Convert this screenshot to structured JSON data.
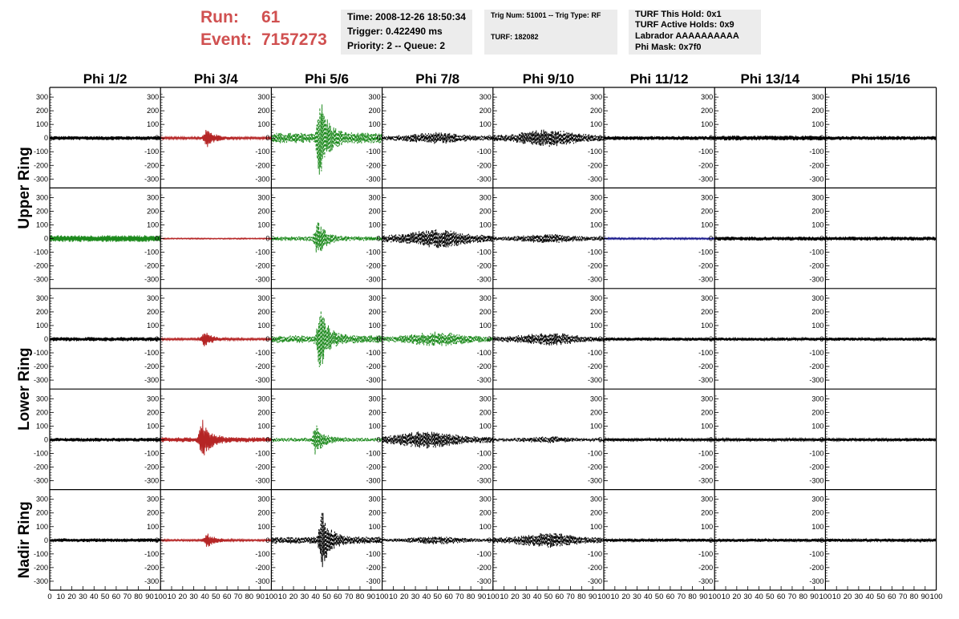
{
  "header": {
    "run_label": "Run:",
    "run_value": "61",
    "event_label": "Event:",
    "event_value": "7157273",
    "time": "Time: 2008-12-26 18:50:34",
    "trigger": "Trigger: 0.422490 ms",
    "priority": "Priority: 2 -- Queue: 2",
    "trig_num": "Trig Num: 51001 -- Trig Type: RF",
    "turf": "TURF: 182082",
    "turf_hold": "TURF This Hold: 0x1",
    "turf_active": "TURF Active Holds: 0x9",
    "labrador": "Labrador AAAAAAAAAA",
    "phi_mask": "Phi Mask: 0x7f0"
  },
  "colors": {
    "red": "#b52525",
    "green": "#1d8a1d",
    "black": "#000000",
    "blue": "#1a1a8c",
    "run_text": "#d05050",
    "info_bg": "#ececec"
  },
  "chart_data": {
    "type": "line",
    "columns": [
      "Phi 1/2",
      "Phi 3/4",
      "Phi 5/6",
      "Phi 7/8",
      "Phi 9/10",
      "Phi 11/12",
      "Phi 13/14",
      "Phi 15/16"
    ],
    "rings": [
      "Upper Ring",
      "Lower Ring",
      "Nadir Ring"
    ],
    "ring_rows": [
      {
        "label": "Upper Ring",
        "rows": [
          0,
          1
        ]
      },
      {
        "label": "Lower Ring",
        "rows": [
          2,
          3
        ]
      },
      {
        "label": "Nadir Ring",
        "rows": [
          4
        ]
      }
    ],
    "ylim": [
      -330,
      330
    ],
    "yticks": [
      -300,
      -200,
      -100,
      0,
      100,
      200,
      300
    ],
    "ytick_labels": [
      "-300",
      "-200",
      "-100",
      "0",
      "100",
      "200",
      "300"
    ],
    "xlim": [
      0,
      100
    ],
    "xtick_labels": [
      "0",
      "10",
      "20",
      "30",
      "40",
      "50",
      "60",
      "70",
      "80",
      "90",
      "100"
    ],
    "grid": false,
    "panels": [
      {
        "row": 0,
        "col": 0,
        "color": "black",
        "shape": "noise",
        "peak_x": 50,
        "amplitude": 15
      },
      {
        "row": 0,
        "col": 1,
        "color": "red",
        "shape": "pulse",
        "peak_x": 42,
        "amplitude": 70
      },
      {
        "row": 0,
        "col": 2,
        "color": "green",
        "shape": "pulse",
        "peak_x": 44,
        "amplitude": 320
      },
      {
        "row": 0,
        "col": 3,
        "color": "black",
        "shape": "dashed",
        "peak_x": 50,
        "amplitude": 45
      },
      {
        "row": 0,
        "col": 4,
        "color": "black",
        "shape": "dashed",
        "peak_x": 50,
        "amplitude": 65
      },
      {
        "row": 0,
        "col": 5,
        "color": "black",
        "shape": "noise",
        "peak_x": 50,
        "amplitude": 15
      },
      {
        "row": 0,
        "col": 6,
        "color": "black",
        "shape": "noise",
        "peak_x": 50,
        "amplitude": 18
      },
      {
        "row": 0,
        "col": 7,
        "color": "black",
        "shape": "noise",
        "peak_x": 50,
        "amplitude": 15
      },
      {
        "row": 1,
        "col": 0,
        "color": "green",
        "shape": "noise",
        "peak_x": 50,
        "amplitude": 25
      },
      {
        "row": 1,
        "col": 1,
        "color": "red",
        "shape": "flat",
        "peak_x": 50,
        "amplitude": 4
      },
      {
        "row": 1,
        "col": 2,
        "color": "green",
        "shape": "pulse",
        "peak_x": 42,
        "amplitude": 140
      },
      {
        "row": 1,
        "col": 3,
        "color": "black",
        "shape": "dashed",
        "peak_x": 50,
        "amplitude": 70
      },
      {
        "row": 1,
        "col": 4,
        "color": "black",
        "shape": "dashed",
        "peak_x": 50,
        "amplitude": 35
      },
      {
        "row": 1,
        "col": 5,
        "color": "blue",
        "shape": "flat",
        "peak_x": 50,
        "amplitude": 6
      },
      {
        "row": 1,
        "col": 6,
        "color": "black",
        "shape": "noise",
        "peak_x": 50,
        "amplitude": 15
      },
      {
        "row": 1,
        "col": 7,
        "color": "black",
        "shape": "noise",
        "peak_x": 50,
        "amplitude": 15
      },
      {
        "row": 2,
        "col": 0,
        "color": "black",
        "shape": "noise",
        "peak_x": 50,
        "amplitude": 15
      },
      {
        "row": 2,
        "col": 1,
        "color": "red",
        "shape": "pulse",
        "peak_x": 40,
        "amplitude": 60
      },
      {
        "row": 2,
        "col": 2,
        "color": "green",
        "shape": "pulse",
        "peak_x": 44,
        "amplitude": 240
      },
      {
        "row": 2,
        "col": 3,
        "color": "green",
        "shape": "dashed",
        "peak_x": 50,
        "amplitude": 55
      },
      {
        "row": 2,
        "col": 4,
        "color": "black",
        "shape": "dashed",
        "peak_x": 50,
        "amplitude": 50
      },
      {
        "row": 2,
        "col": 5,
        "color": "black",
        "shape": "noise",
        "peak_x": 50,
        "amplitude": 12
      },
      {
        "row": 2,
        "col": 6,
        "color": "black",
        "shape": "noise",
        "peak_x": 50,
        "amplitude": 12
      },
      {
        "row": 2,
        "col": 7,
        "color": "black",
        "shape": "noise",
        "peak_x": 50,
        "amplitude": 12
      },
      {
        "row": 3,
        "col": 0,
        "color": "black",
        "shape": "noise",
        "peak_x": 50,
        "amplitude": 14
      },
      {
        "row": 3,
        "col": 1,
        "color": "red",
        "shape": "pulse",
        "peak_x": 38,
        "amplitude": 150
      },
      {
        "row": 3,
        "col": 2,
        "color": "green",
        "shape": "pulse",
        "peak_x": 40,
        "amplitude": 120
      },
      {
        "row": 3,
        "col": 3,
        "color": "black",
        "shape": "dashed",
        "peak_x": 40,
        "amplitude": 65
      },
      {
        "row": 3,
        "col": 4,
        "color": "black",
        "shape": "dashed",
        "peak_x": 50,
        "amplitude": 25
      },
      {
        "row": 3,
        "col": 5,
        "color": "black",
        "shape": "noise",
        "peak_x": 50,
        "amplitude": 10
      },
      {
        "row": 3,
        "col": 6,
        "color": "black",
        "shape": "noise",
        "peak_x": 50,
        "amplitude": 10
      },
      {
        "row": 3,
        "col": 7,
        "color": "black",
        "shape": "noise",
        "peak_x": 50,
        "amplitude": 12
      },
      {
        "row": 4,
        "col": 0,
        "color": "black",
        "shape": "noise",
        "peak_x": 50,
        "amplitude": 14
      },
      {
        "row": 4,
        "col": 1,
        "color": "red",
        "shape": "pulse",
        "peak_x": 42,
        "amplitude": 55
      },
      {
        "row": 4,
        "col": 2,
        "color": "black",
        "shape": "pulse",
        "peak_x": 46,
        "amplitude": 220
      },
      {
        "row": 4,
        "col": 3,
        "color": "black",
        "shape": "dashed",
        "peak_x": 50,
        "amplitude": 30
      },
      {
        "row": 4,
        "col": 4,
        "color": "black",
        "shape": "dashed",
        "peak_x": 50,
        "amplitude": 55
      },
      {
        "row": 4,
        "col": 5,
        "color": "black",
        "shape": "noise",
        "peak_x": 50,
        "amplitude": 12
      },
      {
        "row": 4,
        "col": 6,
        "color": "black",
        "shape": "noise",
        "peak_x": 50,
        "amplitude": 12
      },
      {
        "row": 4,
        "col": 7,
        "color": "black",
        "shape": "noise",
        "peak_x": 50,
        "amplitude": 12
      }
    ]
  }
}
